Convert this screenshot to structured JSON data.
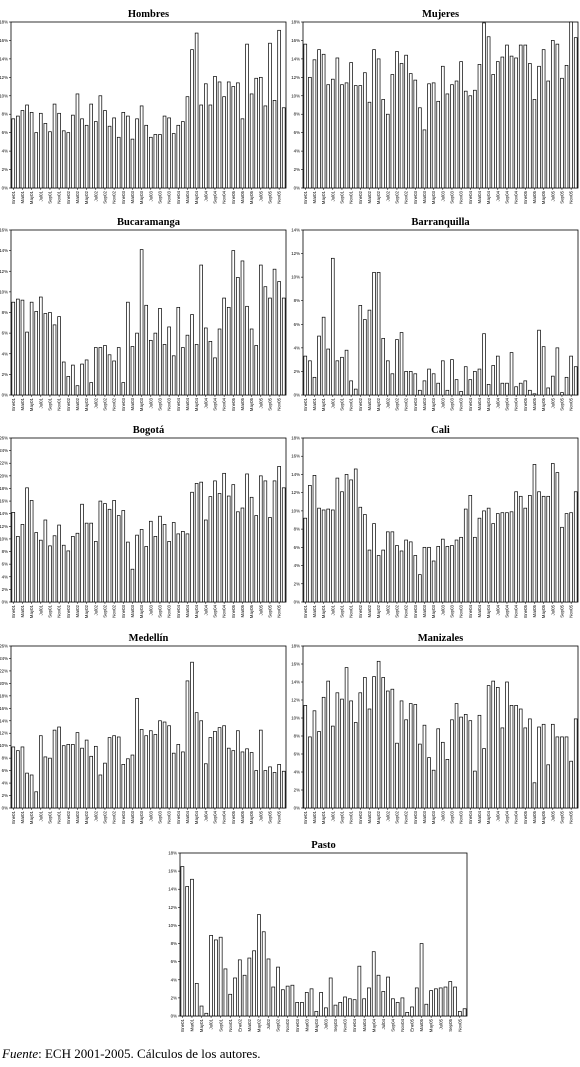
{
  "source": {
    "label": "Fuente",
    "text": ": ECH 2001-2005. Cálculos de los autores."
  },
  "chart_data": [
    {
      "type": "bar",
      "title": "Hombres",
      "ylim": [
        0,
        18
      ],
      "yticks": [
        0,
        2,
        4,
        6,
        8,
        10,
        12,
        14,
        16,
        18
      ],
      "tick_suffix": "%",
      "x_labels": [
        "Ene01",
        "Mar01",
        "May01",
        "Jul01",
        "Sep01",
        "Nov01",
        "Ene02",
        "Mar02",
        "May02",
        "Jul02",
        "Sep02",
        "Nov02",
        "Ene03",
        "Mar03",
        "May03",
        "Jul03",
        "Sep03",
        "Nov03",
        "Ene04",
        "Mar04",
        "May04",
        "Jul04",
        "Sep04",
        "Nov04",
        "Ene05",
        "Mar05",
        "May05",
        "Jul05",
        "Sep05",
        "Nov05"
      ],
      "values": [
        7.5,
        7.8,
        8.4,
        9.0,
        8.2,
        6.0,
        8.1,
        7.0,
        6.1,
        9.1,
        8.1,
        6.2,
        6.0,
        7.9,
        10.2,
        7.5,
        6.8,
        9.1,
        7.2,
        10.0,
        8.4,
        6.7,
        7.6,
        5.5,
        8.2,
        7.8,
        5.3,
        7.5,
        8.9,
        6.8,
        5.5,
        5.8,
        5.8,
        7.8,
        7.6,
        5.9,
        6.8,
        7.2,
        9.9,
        15.0,
        16.8,
        9.0,
        11.3,
        9.0,
        12.1,
        11.5,
        9.9,
        11.5,
        11.0,
        11.4,
        7.5,
        15.6,
        10.2,
        11.9,
        12.0,
        8.9,
        15.7,
        9.5,
        17.1,
        8.7
      ]
    },
    {
      "type": "bar",
      "title": "Mujeres",
      "ylim": [
        0,
        18
      ],
      "yticks": [
        0,
        2,
        4,
        6,
        8,
        10,
        12,
        14,
        16,
        18
      ],
      "tick_suffix": "%",
      "x_labels": [
        "Ene01",
        "Mar01",
        "May01",
        "Jul01",
        "Sep01",
        "Nov01",
        "Ene02",
        "Mar02",
        "May02",
        "Jul02",
        "Sep02",
        "Nov02",
        "Ene03",
        "Mar03",
        "May03",
        "Jul03",
        "Sep03",
        "Nov03",
        "Ene04",
        "Mar04",
        "May04",
        "Jul04",
        "Sep04",
        "Nov04",
        "Ene05",
        "Mar05",
        "May05",
        "Jul05",
        "Sep05",
        "Nov05"
      ],
      "values": [
        15.6,
        12.0,
        13.9,
        15.0,
        14.5,
        11.2,
        11.8,
        14.1,
        11.2,
        11.4,
        13.6,
        11.1,
        11.1,
        12.5,
        9.3,
        15.0,
        14.0,
        9.6,
        8.0,
        12.3,
        14.8,
        13.5,
        14.4,
        12.4,
        11.7,
        8.7,
        6.3,
        11.3,
        11.4,
        9.4,
        13.2,
        10.2,
        11.2,
        11.6,
        13.7,
        10.5,
        10.0,
        10.6,
        13.4,
        17.9,
        16.4,
        12.3,
        13.7,
        14.2,
        15.5,
        14.3,
        14.1,
        15.5,
        15.5,
        13.5,
        9.6,
        13.2,
        15.0,
        11.6,
        16.0,
        15.6,
        11.9,
        13.3,
        18.0,
        16.3
      ]
    },
    {
      "type": "bar",
      "title": "Bucaramanga",
      "ylim": [
        0,
        16
      ],
      "yticks": [
        0,
        2,
        4,
        6,
        8,
        10,
        12,
        14,
        16
      ],
      "tick_suffix": "%",
      "x_labels": [
        "Ene01",
        "Mar01",
        "May01",
        "Jul01",
        "Sep01",
        "Nov01",
        "Ene02",
        "Mar02",
        "May02",
        "Jul02",
        "Sep02",
        "Nov02",
        "Ene03",
        "Mar03",
        "May03",
        "Jul03",
        "Sep03",
        "Nov03",
        "Ene04",
        "Mar04",
        "May04",
        "Jul04",
        "Sep04",
        "Nov04",
        "Ene05",
        "Mar05",
        "May05",
        "Jul05",
        "Sep05",
        "Nov05"
      ],
      "values": [
        9.0,
        9.3,
        9.2,
        6.1,
        9.0,
        8.1,
        9.5,
        7.9,
        8.0,
        6.8,
        7.6,
        3.2,
        1.8,
        2.9,
        0.9,
        3.0,
        3.4,
        1.2,
        4.6,
        4.6,
        4.8,
        3.9,
        3.3,
        4.6,
        1.2,
        9.0,
        4.7,
        6.0,
        14.1,
        8.7,
        5.3,
        6.0,
        8.4,
        4.9,
        6.6,
        3.8,
        8.5,
        4.6,
        5.8,
        7.8,
        4.9,
        12.6,
        6.5,
        5.2,
        3.6,
        6.4,
        9.4,
        8.5,
        14.0,
        11.4,
        13.0,
        8.6,
        6.4,
        4.8,
        12.6,
        10.5,
        9.4,
        12.2,
        11.0,
        9.4
      ]
    },
    {
      "type": "bar",
      "title": "Barranquilla",
      "ylim": [
        0,
        14
      ],
      "yticks": [
        0,
        2,
        4,
        6,
        8,
        10,
        12,
        14
      ],
      "tick_suffix": "%",
      "x_labels": [
        "Ene01",
        "Mar01",
        "May01",
        "Jul01",
        "Sep01",
        "Nov01",
        "Ene02",
        "Mar02",
        "May02",
        "Jul02",
        "Sep02",
        "Nov02",
        "Ene03",
        "Mar03",
        "May03",
        "Jul03",
        "Sep03",
        "Nov03",
        "Ene04",
        "Mar04",
        "May04",
        "Jul04",
        "Sep04",
        "Nov04",
        "Ene05",
        "Mar05",
        "May05",
        "Jul05",
        "Sep05",
        "Nov05"
      ],
      "values": [
        3.3,
        2.9,
        1.5,
        5.0,
        6.6,
        3.9,
        11.6,
        2.9,
        3.2,
        3.8,
        1.2,
        0.5,
        7.6,
        6.4,
        7.2,
        10.4,
        10.4,
        4.8,
        2.9,
        1.8,
        4.7,
        5.3,
        2.0,
        2.0,
        1.8,
        0.4,
        1.2,
        2.2,
        1.8,
        1.0,
        2.9,
        0.4,
        3.0,
        1.3,
        0.3,
        2.4,
        1.3,
        2.0,
        2.2,
        5.2,
        0.9,
        2.5,
        3.3,
        1.0,
        1.0,
        3.6,
        0.7,
        1.0,
        1.2,
        0.4,
        0.1,
        5.5,
        4.1,
        0.6,
        1.6,
        4.0,
        0.2,
        1.5,
        3.3,
        2.4
      ]
    },
    {
      "type": "bar",
      "title": "Bogotá",
      "ylim": [
        0,
        26
      ],
      "yticks": [
        0,
        2,
        4,
        6,
        8,
        10,
        12,
        14,
        16,
        18,
        20,
        22,
        24,
        26
      ],
      "tick_suffix": "%",
      "x_labels": [
        "Ene01",
        "Mar01",
        "May01",
        "Jul01",
        "Sep01",
        "Nov01",
        "Ene02",
        "Mar02",
        "May02",
        "Jul02",
        "Sep02",
        "Nov02",
        "Ene03",
        "Mar03",
        "May03",
        "Jul03",
        "Sep03",
        "Nov03",
        "Ene04",
        "Mar04",
        "May04",
        "Jul04",
        "Sep04",
        "Nov04",
        "Ene05",
        "Mar05",
        "May05",
        "Jul05",
        "Sep05",
        "Nov05"
      ],
      "values": [
        14.2,
        10.4,
        12.3,
        18.1,
        16.1,
        11.0,
        9.8,
        13.0,
        8.9,
        10.5,
        12.2,
        9.0,
        8.1,
        10.4,
        10.9,
        15.5,
        12.5,
        12.5,
        9.6,
        16.0,
        15.6,
        14.7,
        16.1,
        13.7,
        14.5,
        9.5,
        5.2,
        10.6,
        11.5,
        8.8,
        12.8,
        10.4,
        13.6,
        12.3,
        9.6,
        12.6,
        10.8,
        11.2,
        10.8,
        17.4,
        18.8,
        19.0,
        13.0,
        16.7,
        19.2,
        17.2,
        20.4,
        16.8,
        18.6,
        14.3,
        14.9,
        20.3,
        16.6,
        13.7,
        20.0,
        19.2,
        13.4,
        19.2,
        21.5,
        18.1
      ]
    },
    {
      "type": "bar",
      "title": "Cali",
      "ylim": [
        0,
        18
      ],
      "yticks": [
        0,
        2,
        4,
        6,
        8,
        10,
        12,
        14,
        16,
        18
      ],
      "tick_suffix": "%",
      "x_labels": [
        "Ene01",
        "Mar01",
        "May01",
        "Jul01",
        "Sep01",
        "Nov01",
        "Ene02",
        "Mar02",
        "May02",
        "Jul02",
        "Sep02",
        "Nov02",
        "Ene03",
        "Mar03",
        "May03",
        "Jul03",
        "Sep03",
        "Nov03",
        "Ene04",
        "Mar04",
        "May04",
        "Jul04",
        "Sep04",
        "Nov04",
        "Ene05",
        "Mar05",
        "May05",
        "Jul05",
        "Sep05",
        "Nov05"
      ],
      "values": [
        9.2,
        12.8,
        13.9,
        10.3,
        10.1,
        10.2,
        10.1,
        13.6,
        12.1,
        14.0,
        13.4,
        14.6,
        10.4,
        9.6,
        5.7,
        8.6,
        5.1,
        5.7,
        7.7,
        7.7,
        6.2,
        5.6,
        6.8,
        6.6,
        5.1,
        3.0,
        6.0,
        6.0,
        4.5,
        6.1,
        6.9,
        6.1,
        6.2,
        6.8,
        7.1,
        10.2,
        11.7,
        7.1,
        9.2,
        10.0,
        10.3,
        8.6,
        9.7,
        9.8,
        9.8,
        9.9,
        12.1,
        11.6,
        10.3,
        11.7,
        15.1,
        12.1,
        11.6,
        11.6,
        15.2,
        14.2,
        8.2,
        9.7,
        9.8,
        12.1
      ]
    },
    {
      "type": "bar",
      "title": "Medellín",
      "ylim": [
        0,
        26
      ],
      "yticks": [
        0,
        2,
        4,
        6,
        8,
        10,
        12,
        14,
        16,
        18,
        20,
        22,
        24,
        26
      ],
      "tick_suffix": "%",
      "x_labels": [
        "Ene01",
        "Mar01",
        "May01",
        "Jul01",
        "Sep01",
        "Nov01",
        "Ene02",
        "Mar02",
        "May02",
        "Jul02",
        "Sep02",
        "Nov02",
        "Ene03",
        "Mar03",
        "May03",
        "Jul03",
        "Sep03",
        "Nov03",
        "Ene04",
        "Mar04",
        "May04",
        "Jul04",
        "Sep04",
        "Nov04",
        "Ene05",
        "Mar05",
        "May05",
        "Jul05",
        "Sep05",
        "Nov05"
      ],
      "values": [
        9.8,
        9.2,
        9.8,
        5.6,
        5.3,
        2.6,
        11.6,
        8.2,
        8.0,
        12.5,
        13.0,
        10.0,
        10.2,
        10.2,
        12.1,
        9.6,
        10.9,
        8.3,
        9.9,
        5.3,
        7.2,
        11.3,
        11.6,
        11.4,
        7.0,
        7.9,
        8.5,
        17.6,
        12.6,
        11.6,
        12.4,
        11.8,
        14.0,
        13.8,
        13.2,
        8.8,
        10.2,
        9.0,
        20.4,
        23.4,
        15.3,
        14.0,
        7.1,
        11.3,
        12.3,
        12.9,
        13.2,
        9.6,
        9.2,
        12.4,
        9.0,
        9.5,
        8.9,
        6.0,
        12.5,
        6.0,
        6.6,
        5.7,
        7.0,
        5.9
      ]
    },
    {
      "type": "bar",
      "title": "Manizales",
      "ylim": [
        0,
        18
      ],
      "yticks": [
        0,
        2,
        4,
        6,
        8,
        10,
        12,
        14,
        16,
        18
      ],
      "tick_suffix": "%",
      "x_labels": [
        "Ene01",
        "Mar01",
        "May01",
        "Jul01",
        "Sep01",
        "Nov01",
        "Ene02",
        "Mar02",
        "May02",
        "Jul02",
        "Sep02",
        "Nov02",
        "Ene03",
        "Mar03",
        "May03",
        "Jul03",
        "Sep03",
        "Nov03",
        "Ene04",
        "Mar04",
        "May04",
        "Jul04",
        "Sep04",
        "Nov04",
        "Ene05",
        "Mar05",
        "May05",
        "Jul05",
        "Sep05",
        "Nov05"
      ],
      "values": [
        11.4,
        7.9,
        10.8,
        8.5,
        12.3,
        14.1,
        9.1,
        12.8,
        12.1,
        15.6,
        11.9,
        9.5,
        12.8,
        14.5,
        11.0,
        14.6,
        16.3,
        14.5,
        13.0,
        13.2,
        7.2,
        11.9,
        9.8,
        11.6,
        11.5,
        7.1,
        9.2,
        5.6,
        4.2,
        8.8,
        7.3,
        5.4,
        9.8,
        11.6,
        10.1,
        10.4,
        9.7,
        4.1,
        10.3,
        6.6,
        13.6,
        14.1,
        13.4,
        8.9,
        14.0,
        11.4,
        11.4,
        11.0,
        8.9,
        9.9,
        2.8,
        9.0,
        9.3,
        4.8,
        9.3,
        7.9,
        7.9,
        7.9,
        5.2,
        9.9
      ]
    },
    {
      "type": "bar",
      "title": "Pasto",
      "ylim": [
        0,
        18
      ],
      "yticks": [
        0,
        2,
        4,
        6,
        8,
        10,
        12,
        14,
        16,
        18
      ],
      "tick_suffix": "%",
      "x_labels": [
        "Ene01",
        "Mar01",
        "May01",
        "Jul01",
        "Sep01",
        "Nov01",
        "Ene02",
        "Mar02",
        "May02",
        "Jul02",
        "Sep02",
        "Nov02",
        "Ene03",
        "Mar03",
        "May03",
        "Jul03",
        "Sep03",
        "Nov03",
        "Ene04",
        "Mar04",
        "May04",
        "Jul04",
        "Sep04",
        "Nov04",
        "Ene05",
        "Mar05",
        "May05",
        "Jul05",
        "Sep05",
        "Nov05"
      ],
      "values": [
        16.5,
        14.3,
        15.1,
        3.6,
        1.1,
        0.3,
        8.9,
        8.4,
        8.7,
        5.2,
        2.4,
        4.2,
        6.2,
        4.5,
        6.4,
        7.2,
        11.2,
        9.3,
        6.3,
        3.2,
        5.4,
        2.9,
        3.3,
        3.4,
        1.5,
        1.5,
        2.6,
        3.0,
        0.5,
        2.6,
        0.9,
        4.2,
        1.2,
        1.5,
        2.1,
        1.9,
        1.8,
        5.5,
        1.9,
        3.1,
        7.1,
        4.5,
        2.7,
        4.3,
        1.9,
        1.5,
        2.0,
        0.4,
        1.0,
        3.1,
        8.0,
        1.3,
        2.8,
        3.0,
        3.1,
        3.2,
        3.8,
        3.2,
        0.5,
        0.8
      ]
    }
  ]
}
